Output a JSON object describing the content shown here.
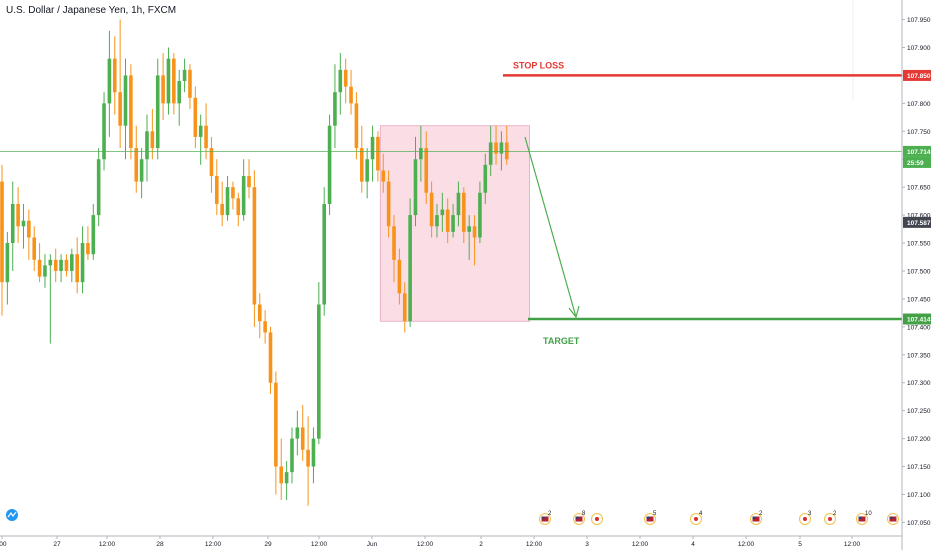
{
  "header": {
    "symbol_title": "U.S. Dollar / Japanese Yen, 1h, FXCM"
  },
  "price_axis": {
    "labels": [
      "107.950",
      "107.900",
      "107.850",
      "107.800",
      "107.750",
      "107.700",
      "107.650",
      "107.600",
      "107.550",
      "107.500",
      "107.450",
      "107.400",
      "107.350",
      "107.300",
      "107.250",
      "107.200",
      "107.150",
      "107.100",
      "107.050"
    ],
    "tags": {
      "stop_loss": "107.850",
      "current": "107.714",
      "countdown": "25:59",
      "last_close": "107.587",
      "target": "107.414"
    }
  },
  "time_axis": {
    "labels": [
      ":00",
      "27",
      "12:00",
      "28",
      "12:00",
      "29",
      "12:00",
      "Jun",
      "12:00",
      "2",
      "12:00",
      "3",
      "12:00",
      "4",
      "12:00",
      "5",
      "12:00"
    ]
  },
  "annotations": {
    "stop_loss_label": "STOP LOSS",
    "target_label": "TARGET"
  },
  "events": [
    {
      "icon": "us-flag-icon",
      "count": "2"
    },
    {
      "icon": "us-flag-icon",
      "count": "8"
    },
    {
      "icon": "jp-flag-icon",
      "count": ""
    },
    {
      "icon": "us-flag-icon",
      "count": "5"
    },
    {
      "icon": "jp-flag-icon",
      "count": "4"
    },
    {
      "icon": "us-flag-icon",
      "count": "2"
    },
    {
      "icon": "jp-flag-icon",
      "count": "3"
    },
    {
      "icon": "jp-flag-icon",
      "count": "2"
    },
    {
      "icon": "us-flag-icon",
      "count": "10"
    },
    {
      "icon": "us-flag-icon",
      "count": ""
    }
  ],
  "colors": {
    "up": "#4caf50",
    "down": "#f7931a",
    "stop_loss": "#e53935",
    "target": "#43a047",
    "current_line": "#4caf50",
    "zone_fill": "#fbdde6",
    "last_tag": "#434651"
  },
  "chart_data": {
    "type": "candlestick",
    "instrument": "U.S. Dollar / Japanese Yen, 1h, FXCM",
    "ylim": [
      107.04,
      107.985
    ],
    "levels": {
      "stop_loss": 107.85,
      "current": 107.714,
      "last_close": 107.587,
      "target": 107.414
    },
    "zone": {
      "from_index": 71,
      "to_index": 96,
      "top": 107.76,
      "bottom": 107.41
    },
    "candles": [
      {
        "o": 107.66,
        "h": 107.69,
        "l": 107.42,
        "c": 107.48
      },
      {
        "o": 107.48,
        "h": 107.57,
        "l": 107.44,
        "c": 107.55
      },
      {
        "o": 107.55,
        "h": 107.66,
        "l": 107.5,
        "c": 107.62
      },
      {
        "o": 107.62,
        "h": 107.65,
        "l": 107.55,
        "c": 107.58
      },
      {
        "o": 107.58,
        "h": 107.62,
        "l": 107.54,
        "c": 107.59
      },
      {
        "o": 107.59,
        "h": 107.61,
        "l": 107.52,
        "c": 107.56
      },
      {
        "o": 107.56,
        "h": 107.58,
        "l": 107.5,
        "c": 107.52
      },
      {
        "o": 107.52,
        "h": 107.55,
        "l": 107.48,
        "c": 107.49
      },
      {
        "o": 107.49,
        "h": 107.53,
        "l": 107.47,
        "c": 107.51
      },
      {
        "o": 107.51,
        "h": 107.53,
        "l": 107.37,
        "c": 107.52
      },
      {
        "o": 107.52,
        "h": 107.54,
        "l": 107.48,
        "c": 107.5
      },
      {
        "o": 107.5,
        "h": 107.53,
        "l": 107.48,
        "c": 107.52
      },
      {
        "o": 107.52,
        "h": 107.53,
        "l": 107.49,
        "c": 107.5
      },
      {
        "o": 107.5,
        "h": 107.54,
        "l": 107.48,
        "c": 107.53
      },
      {
        "o": 107.53,
        "h": 107.56,
        "l": 107.46,
        "c": 107.48
      },
      {
        "o": 107.48,
        "h": 107.58,
        "l": 107.46,
        "c": 107.55
      },
      {
        "o": 107.55,
        "h": 107.58,
        "l": 107.52,
        "c": 107.53
      },
      {
        "o": 107.53,
        "h": 107.62,
        "l": 107.52,
        "c": 107.6
      },
      {
        "o": 107.6,
        "h": 107.72,
        "l": 107.58,
        "c": 107.7
      },
      {
        "o": 107.7,
        "h": 107.82,
        "l": 107.68,
        "c": 107.8
      },
      {
        "o": 107.8,
        "h": 107.93,
        "l": 107.74,
        "c": 107.88
      },
      {
        "o": 107.88,
        "h": 107.92,
        "l": 107.78,
        "c": 107.82
      },
      {
        "o": 107.82,
        "h": 107.95,
        "l": 107.72,
        "c": 107.76
      },
      {
        "o": 107.76,
        "h": 107.88,
        "l": 107.7,
        "c": 107.85
      },
      {
        "o": 107.85,
        "h": 107.87,
        "l": 107.7,
        "c": 107.72
      },
      {
        "o": 107.72,
        "h": 107.76,
        "l": 107.64,
        "c": 107.66
      },
      {
        "o": 107.66,
        "h": 107.72,
        "l": 107.63,
        "c": 107.7
      },
      {
        "o": 107.7,
        "h": 107.78,
        "l": 107.66,
        "c": 107.75
      },
      {
        "o": 107.75,
        "h": 107.79,
        "l": 107.7,
        "c": 107.72
      },
      {
        "o": 107.72,
        "h": 107.88,
        "l": 107.7,
        "c": 107.85
      },
      {
        "o": 107.85,
        "h": 107.89,
        "l": 107.77,
        "c": 107.8
      },
      {
        "o": 107.8,
        "h": 107.9,
        "l": 107.78,
        "c": 107.88
      },
      {
        "o": 107.88,
        "h": 107.89,
        "l": 107.78,
        "c": 107.8
      },
      {
        "o": 107.8,
        "h": 107.86,
        "l": 107.76,
        "c": 107.84
      },
      {
        "o": 107.84,
        "h": 107.88,
        "l": 107.82,
        "c": 107.86
      },
      {
        "o": 107.86,
        "h": 107.87,
        "l": 107.79,
        "c": 107.81
      },
      {
        "o": 107.81,
        "h": 107.83,
        "l": 107.72,
        "c": 107.74
      },
      {
        "o": 107.74,
        "h": 107.78,
        "l": 107.69,
        "c": 107.76
      },
      {
        "o": 107.76,
        "h": 107.8,
        "l": 107.7,
        "c": 107.72
      },
      {
        "o": 107.72,
        "h": 107.74,
        "l": 107.64,
        "c": 107.67
      },
      {
        "o": 107.67,
        "h": 107.7,
        "l": 107.6,
        "c": 107.62
      },
      {
        "o": 107.62,
        "h": 107.66,
        "l": 107.58,
        "c": 107.6
      },
      {
        "o": 107.6,
        "h": 107.67,
        "l": 107.59,
        "c": 107.65
      },
      {
        "o": 107.65,
        "h": 107.66,
        "l": 107.61,
        "c": 107.63
      },
      {
        "o": 107.63,
        "h": 107.64,
        "l": 107.58,
        "c": 107.6
      },
      {
        "o": 107.6,
        "h": 107.7,
        "l": 107.59,
        "c": 107.67
      },
      {
        "o": 107.67,
        "h": 107.7,
        "l": 107.63,
        "c": 107.65
      },
      {
        "o": 107.65,
        "h": 107.68,
        "l": 107.4,
        "c": 107.44
      },
      {
        "o": 107.44,
        "h": 107.46,
        "l": 107.38,
        "c": 107.41
      },
      {
        "o": 107.41,
        "h": 107.43,
        "l": 107.37,
        "c": 107.39
      },
      {
        "o": 107.39,
        "h": 107.4,
        "l": 107.28,
        "c": 107.3
      },
      {
        "o": 107.3,
        "h": 107.32,
        "l": 107.1,
        "c": 107.15
      },
      {
        "o": 107.15,
        "h": 107.2,
        "l": 107.09,
        "c": 107.12
      },
      {
        "o": 107.12,
        "h": 107.16,
        "l": 107.09,
        "c": 107.14
      },
      {
        "o": 107.14,
        "h": 107.22,
        "l": 107.12,
        "c": 107.2
      },
      {
        "o": 107.2,
        "h": 107.25,
        "l": 107.17,
        "c": 107.22
      },
      {
        "o": 107.22,
        "h": 107.26,
        "l": 107.16,
        "c": 107.18
      },
      {
        "o": 107.18,
        "h": 107.24,
        "l": 107.08,
        "c": 107.15
      },
      {
        "o": 107.15,
        "h": 107.22,
        "l": 107.12,
        "c": 107.2
      },
      {
        "o": 107.2,
        "h": 107.48,
        "l": 107.19,
        "c": 107.44
      },
      {
        "o": 107.44,
        "h": 107.65,
        "l": 107.42,
        "c": 107.62
      },
      {
        "o": 107.62,
        "h": 107.78,
        "l": 107.6,
        "c": 107.76
      },
      {
        "o": 107.76,
        "h": 107.87,
        "l": 107.72,
        "c": 107.82
      },
      {
        "o": 107.82,
        "h": 107.89,
        "l": 107.78,
        "c": 107.86
      },
      {
        "o": 107.86,
        "h": 107.88,
        "l": 107.8,
        "c": 107.83
      },
      {
        "o": 107.83,
        "h": 107.86,
        "l": 107.78,
        "c": 107.8
      },
      {
        "o": 107.8,
        "h": 107.82,
        "l": 107.7,
        "c": 107.72
      },
      {
        "o": 107.72,
        "h": 107.76,
        "l": 107.64,
        "c": 107.66
      },
      {
        "o": 107.66,
        "h": 107.72,
        "l": 107.63,
        "c": 107.7
      },
      {
        "o": 107.7,
        "h": 107.76,
        "l": 107.66,
        "c": 107.74
      },
      {
        "o": 107.74,
        "h": 107.75,
        "l": 107.66,
        "c": 107.68
      },
      {
        "o": 107.68,
        "h": 107.71,
        "l": 107.64,
        "c": 107.66
      },
      {
        "o": 107.66,
        "h": 107.68,
        "l": 107.56,
        "c": 107.58
      },
      {
        "o": 107.58,
        "h": 107.6,
        "l": 107.48,
        "c": 107.52
      },
      {
        "o": 107.52,
        "h": 107.54,
        "l": 107.44,
        "c": 107.46
      },
      {
        "o": 107.46,
        "h": 107.48,
        "l": 107.39,
        "c": 107.41
      },
      {
        "o": 107.41,
        "h": 107.63,
        "l": 107.4,
        "c": 107.6
      },
      {
        "o": 107.6,
        "h": 107.74,
        "l": 107.58,
        "c": 107.7
      },
      {
        "o": 107.7,
        "h": 107.76,
        "l": 107.66,
        "c": 107.72
      },
      {
        "o": 107.72,
        "h": 107.75,
        "l": 107.62,
        "c": 107.64
      },
      {
        "o": 107.64,
        "h": 107.66,
        "l": 107.56,
        "c": 107.58
      },
      {
        "o": 107.58,
        "h": 107.62,
        "l": 107.56,
        "c": 107.6
      },
      {
        "o": 107.6,
        "h": 107.64,
        "l": 107.57,
        "c": 107.61
      },
      {
        "o": 107.61,
        "h": 107.63,
        "l": 107.55,
        "c": 107.57
      },
      {
        "o": 107.57,
        "h": 107.62,
        "l": 107.56,
        "c": 107.6
      },
      {
        "o": 107.6,
        "h": 107.66,
        "l": 107.58,
        "c": 107.64
      },
      {
        "o": 107.64,
        "h": 107.65,
        "l": 107.55,
        "c": 107.57
      },
      {
        "o": 107.57,
        "h": 107.6,
        "l": 107.52,
        "c": 107.58
      },
      {
        "o": 107.58,
        "h": 107.6,
        "l": 107.51,
        "c": 107.56
      },
      {
        "o": 107.56,
        "h": 107.66,
        "l": 107.55,
        "c": 107.64
      },
      {
        "o": 107.64,
        "h": 107.71,
        "l": 107.62,
        "c": 107.69
      },
      {
        "o": 107.69,
        "h": 107.76,
        "l": 107.67,
        "c": 107.73
      },
      {
        "o": 107.73,
        "h": 107.76,
        "l": 107.69,
        "c": 107.71
      },
      {
        "o": 107.71,
        "h": 107.75,
        "l": 107.68,
        "c": 107.73
      },
      {
        "o": 107.73,
        "h": 107.76,
        "l": 107.69,
        "c": 107.7
      }
    ]
  }
}
